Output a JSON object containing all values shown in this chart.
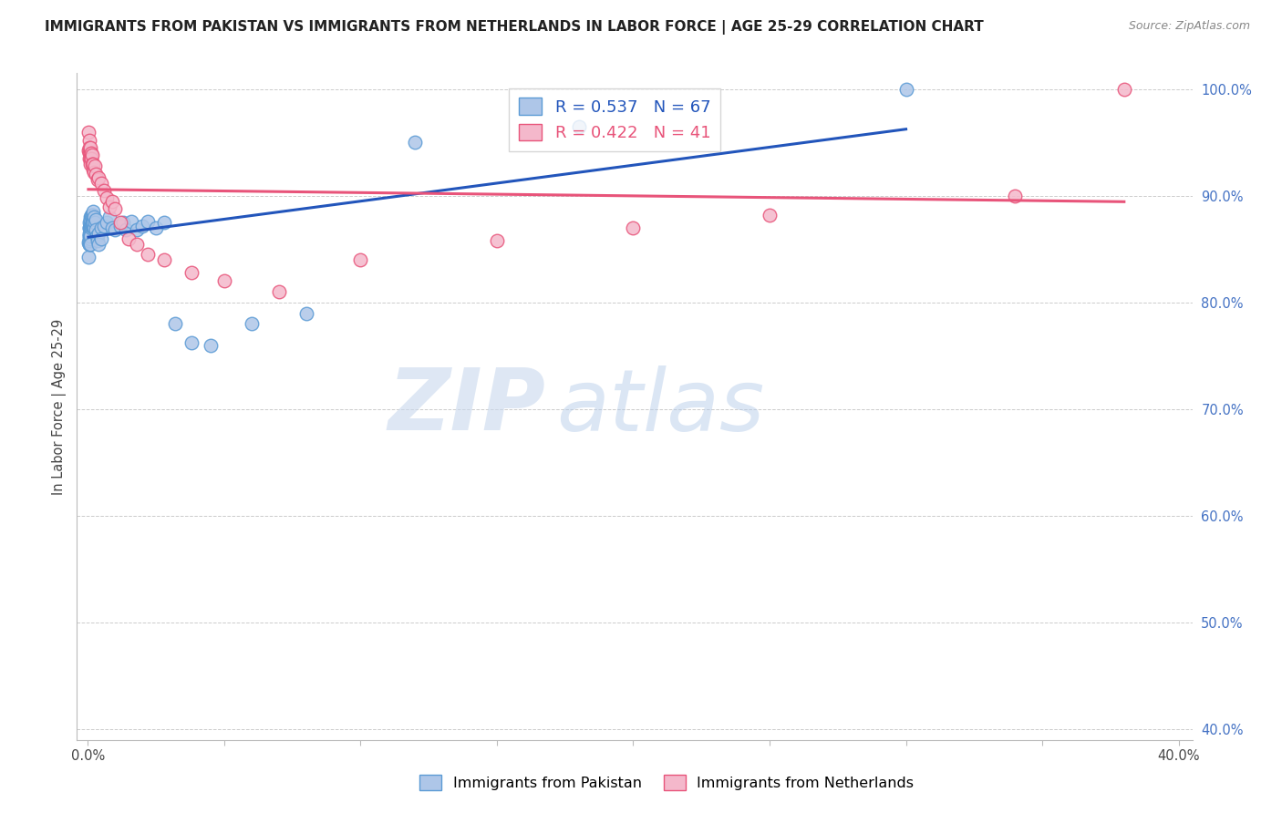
{
  "title": "IMMIGRANTS FROM PAKISTAN VS IMMIGRANTS FROM NETHERLANDS IN LABOR FORCE | AGE 25-29 CORRELATION CHART",
  "source": "Source: ZipAtlas.com",
  "ylabel": "In Labor Force | Age 25-29",
  "xlim": [
    -0.004,
    0.405
  ],
  "ylim": [
    0.39,
    1.015
  ],
  "yticks": [
    0.4,
    0.5,
    0.6,
    0.7,
    0.8,
    0.9,
    1.0
  ],
  "ytick_labels": [
    "40.0%",
    "50.0%",
    "60.0%",
    "70.0%",
    "80.0%",
    "90.0%",
    "100.0%"
  ],
  "xticks": [
    0.0,
    0.05,
    0.1,
    0.15,
    0.2,
    0.25,
    0.3,
    0.35,
    0.4
  ],
  "xtick_labels": [
    "0.0%",
    "",
    "",
    "",
    "",
    "",
    "",
    "",
    "40.0%"
  ],
  "grid_color": "#cccccc",
  "background_color": "#ffffff",
  "pakistan_color": "#aec6e8",
  "pakistan_edge_color": "#5b9bd5",
  "netherlands_color": "#f4b8cb",
  "netherlands_edge_color": "#e8547a",
  "pakistan_line_color": "#2255bb",
  "netherlands_line_color": "#e8547a",
  "pakistan_R": 0.537,
  "pakistan_N": 67,
  "netherlands_R": 0.422,
  "netherlands_N": 41,
  "pakistan_label": "Immigrants from Pakistan",
  "netherlands_label": "Immigrants from Netherlands",
  "watermark_zip": "ZIP",
  "watermark_atlas": "atlas",
  "pakistan_x": [
    0.0002,
    0.0002,
    0.0004,
    0.0004,
    0.0005,
    0.0005,
    0.0005,
    0.0006,
    0.0006,
    0.0007,
    0.0007,
    0.0007,
    0.0008,
    0.0008,
    0.0008,
    0.0009,
    0.0009,
    0.001,
    0.001,
    0.001,
    0.001,
    0.0012,
    0.0012,
    0.0013,
    0.0013,
    0.0014,
    0.0015,
    0.0015,
    0.0016,
    0.0017,
    0.0018,
    0.0018,
    0.002,
    0.002,
    0.0022,
    0.0023,
    0.0025,
    0.003,
    0.003,
    0.0032,
    0.0035,
    0.004,
    0.004,
    0.005,
    0.005,
    0.006,
    0.007,
    0.008,
    0.009,
    0.01,
    0.012,
    0.013,
    0.014,
    0.016,
    0.018,
    0.02,
    0.022,
    0.025,
    0.028,
    0.032,
    0.038,
    0.045,
    0.06,
    0.08,
    0.12,
    0.18,
    0.3
  ],
  "pakistan_y": [
    0.856,
    0.843,
    0.862,
    0.855,
    0.87,
    0.863,
    0.855,
    0.87,
    0.86,
    0.875,
    0.865,
    0.858,
    0.88,
    0.871,
    0.86,
    0.873,
    0.865,
    0.878,
    0.87,
    0.862,
    0.855,
    0.88,
    0.87,
    0.882,
    0.872,
    0.875,
    0.882,
    0.872,
    0.875,
    0.873,
    0.882,
    0.872,
    0.885,
    0.875,
    0.88,
    0.87,
    0.875,
    0.878,
    0.868,
    0.862,
    0.858,
    0.865,
    0.855,
    0.87,
    0.86,
    0.872,
    0.875,
    0.88,
    0.87,
    0.868,
    0.872,
    0.875,
    0.868,
    0.876,
    0.868,
    0.872,
    0.876,
    0.87,
    0.875,
    0.78,
    0.762,
    0.76,
    0.78,
    0.79,
    0.95,
    0.965,
    1.0
  ],
  "netherlands_x": [
    0.0002,
    0.0002,
    0.0004,
    0.0005,
    0.0006,
    0.0007,
    0.0008,
    0.0009,
    0.001,
    0.001,
    0.0012,
    0.0013,
    0.0015,
    0.0016,
    0.0018,
    0.002,
    0.0022,
    0.0025,
    0.003,
    0.0035,
    0.004,
    0.005,
    0.006,
    0.007,
    0.008,
    0.009,
    0.01,
    0.012,
    0.015,
    0.018,
    0.022,
    0.028,
    0.038,
    0.05,
    0.07,
    0.1,
    0.15,
    0.2,
    0.25,
    0.34,
    0.38
  ],
  "netherlands_y": [
    0.96,
    0.943,
    0.952,
    0.94,
    0.945,
    0.935,
    0.94,
    0.935,
    0.945,
    0.93,
    0.94,
    0.935,
    0.938,
    0.93,
    0.925,
    0.93,
    0.922,
    0.928,
    0.92,
    0.915,
    0.917,
    0.912,
    0.905,
    0.898,
    0.89,
    0.895,
    0.888,
    0.875,
    0.86,
    0.855,
    0.845,
    0.84,
    0.828,
    0.82,
    0.81,
    0.84,
    0.858,
    0.87,
    0.882,
    0.9,
    1.0
  ]
}
